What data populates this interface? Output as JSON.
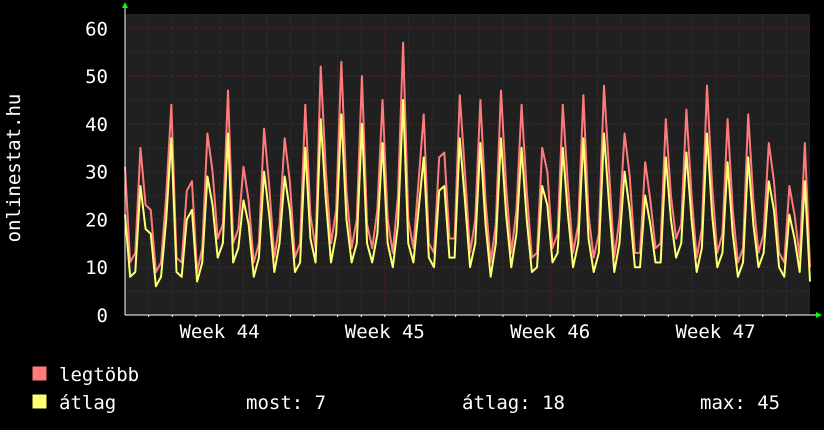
{
  "colors": {
    "background": "#000000",
    "plot_background": "#202020",
    "grid_major": "#7a2020",
    "grid_minor": "#3a3a3a",
    "series_max": "#ff7b7b",
    "series_avg": "#ffff73",
    "axis_arrow": "#00ff00"
  },
  "chart_data": {
    "type": "line",
    "ylabel": "onlinestat.hu",
    "ylim": [
      0,
      63
    ],
    "yticks": [
      0,
      10,
      20,
      30,
      40,
      50,
      60
    ],
    "x_range_days": [
      0,
      29
    ],
    "week_ticks": [
      {
        "label": "Week 44",
        "day": 4
      },
      {
        "label": "Week 45",
        "day": 11
      },
      {
        "label": "Week 46",
        "day": 18
      },
      {
        "label": "Week 47",
        "day": 25
      }
    ],
    "series": [
      {
        "name": "legtöbb",
        "color": "#ff7b7b",
        "values": [
          31,
          11,
          13,
          35,
          23,
          22,
          9,
          11,
          25,
          44,
          12,
          11,
          26,
          28,
          9,
          14,
          38,
          30,
          16,
          19,
          47,
          15,
          18,
          31,
          24,
          11,
          15,
          39,
          27,
          12,
          19,
          37,
          28,
          12,
          15,
          44,
          21,
          14,
          52,
          30,
          15,
          22,
          53,
          26,
          14,
          20,
          50,
          19,
          14,
          22,
          45,
          20,
          13,
          25,
          57,
          20,
          14,
          28,
          42,
          15,
          13,
          33,
          34,
          16,
          16,
          46,
          30,
          13,
          20,
          45,
          24,
          11,
          19,
          47,
          27,
          13,
          22,
          44,
          26,
          12,
          13,
          35,
          30,
          14,
          17,
          44,
          27,
          13,
          19,
          46,
          21,
          12,
          17,
          48,
          30,
          12,
          20,
          38,
          29,
          13,
          13,
          32,
          24,
          14,
          15,
          41,
          25,
          16,
          19,
          43,
          25,
          12,
          18,
          48,
          27,
          13,
          17,
          41,
          22,
          11,
          14,
          42,
          24,
          13,
          17,
          36,
          28,
          13,
          11,
          27,
          21,
          12,
          36,
          10
        ]
      },
      {
        "name": "átlag",
        "color": "#ffff73",
        "values": [
          21,
          8,
          9,
          27,
          18,
          17,
          6,
          8,
          20,
          37,
          9,
          8,
          20,
          22,
          7,
          11,
          29,
          23,
          12,
          15,
          38,
          11,
          14,
          24,
          19,
          8,
          12,
          30,
          21,
          9,
          15,
          29,
          22,
          9,
          11,
          35,
          16,
          11,
          41,
          24,
          11,
          17,
          42,
          20,
          11,
          15,
          40,
          15,
          11,
          17,
          36,
          15,
          10,
          19,
          45,
          15,
          11,
          22,
          33,
          12,
          10,
          26,
          27,
          12,
          12,
          37,
          24,
          10,
          15,
          36,
          19,
          8,
          15,
          37,
          21,
          10,
          17,
          35,
          20,
          9,
          10,
          27,
          23,
          11,
          13,
          35,
          21,
          10,
          15,
          37,
          16,
          9,
          13,
          38,
          23,
          9,
          15,
          30,
          22,
          10,
          10,
          25,
          19,
          11,
          11,
          33,
          20,
          12,
          15,
          34,
          20,
          9,
          14,
          38,
          21,
          10,
          13,
          32,
          17,
          8,
          11,
          33,
          19,
          10,
          13,
          28,
          22,
          10,
          8,
          21,
          16,
          9,
          28,
          7
        ]
      }
    ],
    "legend": {
      "items": [
        {
          "label": "legtöbb",
          "color": "#ff7b7b"
        },
        {
          "label": "átlag",
          "color": "#ffff73"
        }
      ],
      "stats": {
        "most": "most: 7",
        "atlag": "átlag: 18",
        "max": "max: 45"
      }
    }
  }
}
